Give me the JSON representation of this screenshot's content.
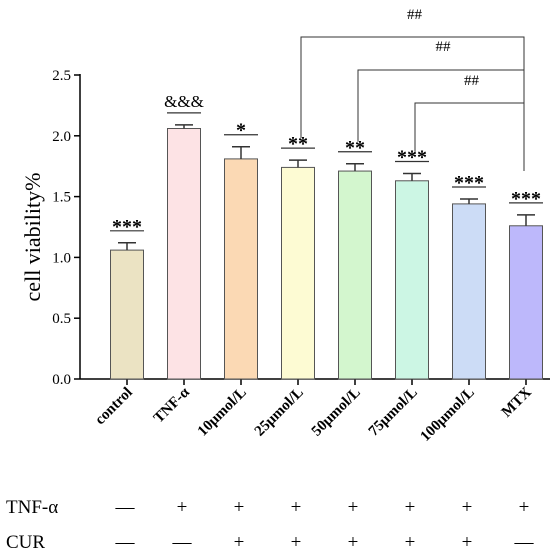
{
  "chart_data": {
    "type": "bar",
    "ylabel": "cell viability%",
    "ylim": [
      0,
      2.5
    ],
    "yticks": [
      "0.0",
      "0.5",
      "1.0",
      "1.5",
      "2.0",
      "2.5"
    ],
    "categories": [
      "control",
      "TNF-α",
      "10μmol/L",
      "25μmol/L",
      "50μmol/L",
      "75μmol/L",
      "100μmol/L",
      "MTX"
    ],
    "values": [
      1.06,
      2.06,
      1.81,
      1.74,
      1.71,
      1.63,
      1.44,
      1.26
    ],
    "errors": [
      0.06,
      0.03,
      0.1,
      0.06,
      0.06,
      0.06,
      0.04,
      0.09
    ],
    "colors": [
      "#ebe3c3",
      "#fde3e5",
      "#fbd9b4",
      "#fdfbd3",
      "#d3f6ce",
      "#ccf6e4",
      "#ccdcf6",
      "#bdb8fb"
    ],
    "annotations": [
      "***",
      "&&&",
      "*",
      "**",
      "**",
      "***",
      "***",
      "***"
    ],
    "comparisons": [
      {
        "from": "25μmol/L",
        "to": "MTX",
        "label": "##"
      },
      {
        "from": "50μmol/L",
        "to": "MTX",
        "label": "##"
      },
      {
        "from": "75μmol/L",
        "to": "MTX",
        "label": "##"
      }
    ],
    "treatment_rows": [
      {
        "name": "TNF-α",
        "signs": [
          "—",
          "+",
          "+",
          "+",
          "+",
          "+",
          "+",
          "+"
        ]
      },
      {
        "name": "CUR",
        "signs": [
          "—",
          "—",
          "+",
          "+",
          "+",
          "+",
          "+",
          "—"
        ]
      }
    ]
  }
}
